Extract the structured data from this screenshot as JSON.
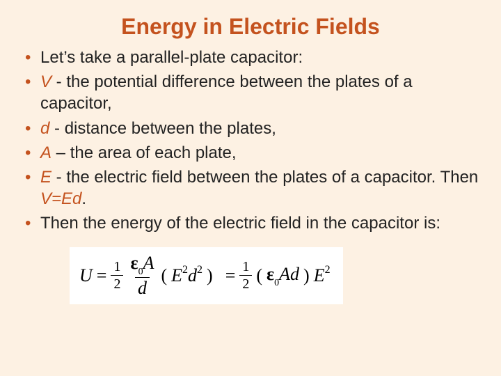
{
  "colors": {
    "background": "#fdf1e3",
    "title": "#c4521e",
    "bullet_marker": "#c4521e",
    "body_text": "#222222",
    "symbol_text": "#c4521e",
    "equation_bg": "#ffffff",
    "equation_text": "#000000"
  },
  "typography": {
    "title_fontsize": 32,
    "body_fontsize": 24,
    "equation_fontsize": 26,
    "title_family": "Arial",
    "equation_family": "Times New Roman"
  },
  "title": "Energy in Electric Fields",
  "bullets": [
    {
      "symbol": "",
      "text_after": "Let’s take a parallel-plate capacitor:"
    },
    {
      "symbol": "V",
      "text_after": " - the potential difference between the plates of a capacitor,"
    },
    {
      "symbol": "d",
      "text_after": " - distance between the plates,"
    },
    {
      "symbol": "A",
      "text_after": " – the area of each plate,"
    },
    {
      "symbol": "E",
      "text_after": " - the electric field between the plates of a capacitor. Then ",
      "tail_symbol": "V=Ed",
      "tail_after": "."
    },
    {
      "symbol": "",
      "text_after": "Then the energy of the electric field in the capacitor is:"
    }
  ],
  "equation": {
    "lhs": "U",
    "eq": "=",
    "half_num": "1",
    "half_den": "2",
    "eps": "ε",
    "eps_sub": "0",
    "A": "A",
    "d": "d",
    "paren_open": "(",
    "E": "E",
    "sq": "2",
    "d2": "d",
    "paren_close": ")",
    "eq2": "=",
    "half2_num": "1",
    "half2_den": "2",
    "paren2_open": "(",
    "Ad": "Ad",
    "paren2_close": ")",
    "E2": "E"
  }
}
